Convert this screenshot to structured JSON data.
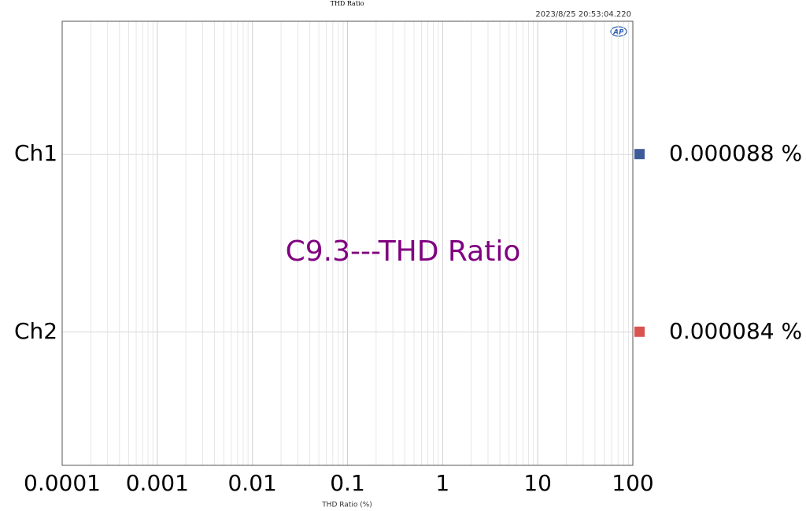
{
  "chart_data": {
    "type": "hbar",
    "title": "THD Ratio",
    "timestamp": "2023/8/25 20:53:04.220",
    "logo": "AP",
    "annotation": "C9.3---THD Ratio",
    "xlabel": "THD Ratio (%)",
    "categories": [
      "Ch1",
      "Ch2"
    ],
    "values": [
      8.8e-05,
      8.4e-05
    ],
    "value_labels": [
      "0.000088 %",
      "0.000084 %"
    ],
    "colors": [
      "#3d5a99",
      "#d9534f"
    ],
    "xscale": "log",
    "xlim": [
      0.0001,
      100
    ],
    "xticks": [
      0.0001,
      0.001,
      0.01,
      0.1,
      1,
      10,
      100
    ],
    "grid": true,
    "minor_grid": true
  }
}
